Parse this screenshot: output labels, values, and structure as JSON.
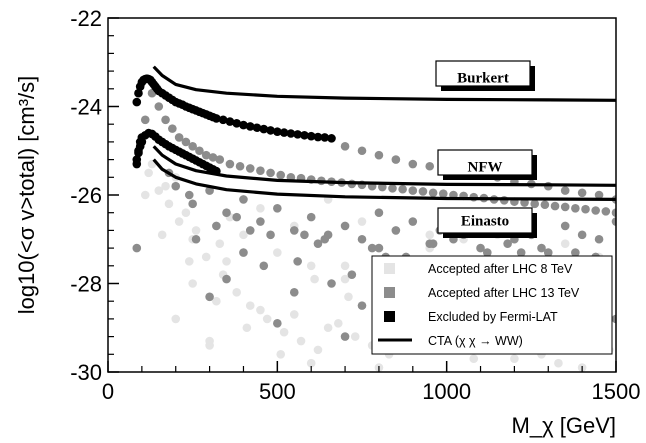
{
  "chart_data": {
    "type": "scatter",
    "title": "",
    "xlabel": "M_χ [GeV]",
    "ylabel": "log10(<σ v>total) [cm³/s]",
    "xlim": [
      0,
      1500
    ],
    "ylim": [
      -30,
      -22
    ],
    "x_ticks": [
      0,
      500,
      1000,
      1500
    ],
    "x_tick_labels": [
      "0",
      "500",
      "1000",
      "1500"
    ],
    "y_ticks": [
      -30,
      -28,
      -26,
      -24,
      -22
    ],
    "y_tick_labels": [
      "-30",
      "-28",
      "-26",
      "-24",
      "-22"
    ],
    "legend_position": "bottom-right",
    "legend": [
      {
        "label": "Accepted after LHC 8 TeV",
        "marker": "square",
        "color": "#e4e4e4"
      },
      {
        "label": "Accepted after LHC 13 TeV",
        "marker": "square",
        "color": "#8c8c8c"
      },
      {
        "label": "Excluded by Fermi-LAT",
        "marker": "square",
        "color": "#000000"
      },
      {
        "label": "CTA (χ χ → WW)",
        "marker": "line",
        "color": "#000000"
      }
    ],
    "cta_curves": [
      {
        "label": "Burkert",
        "x": [
          135,
          160,
          200,
          260,
          350,
          500,
          700,
          1000,
          1300,
          1500
        ],
        "y": [
          -23.1,
          -23.3,
          -23.5,
          -23.62,
          -23.7,
          -23.77,
          -23.81,
          -23.84,
          -23.85,
          -23.86
        ]
      },
      {
        "label": "NFW",
        "x": [
          135,
          160,
          200,
          260,
          350,
          500,
          700,
          1000,
          1300,
          1500
        ],
        "y": [
          -24.9,
          -25.1,
          -25.3,
          -25.45,
          -25.57,
          -25.67,
          -25.72,
          -25.76,
          -25.77,
          -25.78
        ]
      },
      {
        "label": "Einasto",
        "x": [
          135,
          160,
          200,
          260,
          350,
          500,
          700,
          1000,
          1300,
          1500
        ],
        "y": [
          -25.2,
          -25.42,
          -25.6,
          -25.75,
          -25.88,
          -25.98,
          -26.04,
          -26.08,
          -26.09,
          -26.1
        ]
      }
    ],
    "series": [
      {
        "name": "Accepted after LHC 8 TeV",
        "color": "#e4e4e4",
        "x": [
          100,
          120,
          150,
          180,
          200,
          230,
          260,
          300,
          330,
          360,
          400,
          450,
          500,
          550,
          600,
          650,
          700,
          750,
          800,
          850,
          900,
          950,
          1000,
          1050,
          1100,
          1150,
          1200,
          1250,
          1300,
          1350,
          1400,
          1450,
          130,
          170,
          210,
          250,
          290,
          340,
          380,
          420,
          470,
          520,
          570,
          620,
          680,
          730,
          780,
          830,
          880,
          930,
          980,
          1030,
          1080,
          1130,
          1180,
          1230,
          1280,
          1330,
          1380,
          1430,
          1480,
          110,
          160,
          240,
          320,
          410,
          510,
          610,
          710,
          810,
          910,
          1010,
          1110,
          1210,
          1310,
          1410,
          200,
          300,
          400,
          600,
          800,
          1000,
          1200,
          1400,
          250,
          450,
          650,
          850,
          1050,
          1250,
          1450,
          300,
          700,
          900,
          1300,
          350,
          550,
          950,
          1150,
          1350
        ],
        "y": [
          -24.8,
          -25.5,
          -25.9,
          -26.2,
          -25.6,
          -26.4,
          -26.8,
          -25.9,
          -27.1,
          -26.5,
          -26.9,
          -26.3,
          -27.3,
          -26.7,
          -27.6,
          -26.1,
          -27.9,
          -26.6,
          -27.2,
          -26.8,
          -28.1,
          -26.9,
          -27.5,
          -27.0,
          -28.3,
          -26.9,
          -27.6,
          -27.8,
          -28.6,
          -27.1,
          -28.0,
          -27.4,
          -25.3,
          -25.8,
          -26.6,
          -27.0,
          -27.4,
          -27.8,
          -28.2,
          -28.5,
          -28.8,
          -29.1,
          -29.3,
          -29.5,
          -28.9,
          -29.2,
          -29.4,
          -29.6,
          -28.7,
          -29.0,
          -29.3,
          -29.5,
          -29.7,
          -28.8,
          -29.1,
          -29.4,
          -29.6,
          -29.8,
          -29.0,
          -29.3,
          -29.5,
          -26.0,
          -26.9,
          -27.5,
          -28.4,
          -29.0,
          -29.6,
          -27.9,
          -28.3,
          -28.6,
          -29.1,
          -28.9,
          -27.7,
          -28.2,
          -29.2,
          -28.7,
          -28.8,
          -29.4,
          -27.3,
          -29.8,
          -29.9,
          -28.4,
          -29.7,
          -29.9,
          -28.0,
          -28.6,
          -29.0,
          -27.8,
          -29.5,
          -28.9,
          -28.1,
          -29.3,
          -27.6,
          -28.0,
          -27.9,
          -27.5,
          -28.7,
          -27.2,
          -28.5,
          -28.3
        ]
      },
      {
        "name": "Accepted after LHC 13 TeV",
        "color": "#8c8c8c",
        "x": [
          85,
          95,
          110,
          130,
          150,
          170,
          190,
          210,
          230,
          250,
          270,
          290,
          310,
          330,
          360,
          390,
          420,
          450,
          480,
          510,
          540,
          570,
          600,
          630,
          660,
          690,
          720,
          750,
          780,
          810,
          840,
          870,
          900,
          930,
          960,
          990,
          1020,
          1050,
          1080,
          1110,
          1140,
          1170,
          1200,
          1230,
          1260,
          1290,
          1320,
          1350,
          1380,
          1410,
          1440,
          1470,
          1500,
          700,
          750,
          800,
          850,
          900,
          950,
          1000,
          1050,
          1100,
          1150,
          1200,
          1250,
          1300,
          1350,
          1400,
          1450,
          1500,
          200,
          250,
          300,
          350,
          400,
          450,
          500,
          550,
          600,
          650,
          700,
          750,
          800,
          850,
          900,
          950,
          1000,
          1050,
          1100,
          1150,
          1200,
          1250,
          1300,
          1350,
          1400,
          1450,
          1500,
          180,
          240,
          320,
          400,
          480,
          560,
          640,
          720,
          800,
          880,
          960,
          1040,
          1120,
          1200,
          1280,
          1360,
          1440,
          300,
          500,
          700,
          900,
          1100,
          1300,
          1500,
          350,
          550,
          750,
          950,
          1150,
          1350,
          420,
          620,
          820,
          1020,
          1220,
          1420,
          260,
          460,
          660,
          860,
          1060,
          1260,
          1460,
          380,
          580,
          780,
          980,
          1180,
          1380
        ],
        "y": [
          -27.2,
          -24.9,
          -24.3,
          -23.7,
          -24.0,
          -24.3,
          -24.5,
          -24.7,
          -24.8,
          -24.9,
          -25.0,
          -25.1,
          -25.15,
          -25.2,
          -25.3,
          -25.35,
          -25.4,
          -25.45,
          -25.5,
          -25.55,
          -25.6,
          -25.62,
          -25.65,
          -25.68,
          -25.7,
          -25.72,
          -25.75,
          -25.77,
          -25.8,
          -25.82,
          -25.85,
          -25.87,
          -25.9,
          -25.92,
          -25.95,
          -25.97,
          -26.0,
          -26.02,
          -26.05,
          -26.07,
          -26.1,
          -26.12,
          -26.15,
          -26.17,
          -26.2,
          -26.22,
          -26.25,
          -26.27,
          -26.3,
          -26.32,
          -26.35,
          -26.37,
          -26.4,
          -24.9,
          -25.0,
          -25.1,
          -25.2,
          -25.3,
          -25.35,
          -25.4,
          -25.5,
          -25.55,
          -25.6,
          -25.7,
          -25.75,
          -25.8,
          -25.9,
          -25.95,
          -26.0,
          -26.1,
          -25.8,
          -26.2,
          -25.9,
          -26.4,
          -26.1,
          -26.6,
          -26.3,
          -26.8,
          -26.5,
          -26.9,
          -26.7,
          -27.0,
          -26.4,
          -26.8,
          -26.6,
          -27.1,
          -26.7,
          -26.9,
          -27.2,
          -26.8,
          -27.0,
          -26.9,
          -27.3,
          -26.7,
          -26.9,
          -27.0,
          -26.6,
          -25.5,
          -26.0,
          -26.7,
          -27.3,
          -26.9,
          -27.5,
          -27.0,
          -27.8,
          -27.2,
          -27.4,
          -27.1,
          -27.6,
          -27.3,
          -27.5,
          -27.2,
          -27.6,
          -27.4,
          -28.3,
          -28.9,
          -29.2,
          -28.7,
          -29.0,
          -29.4,
          -28.8,
          -27.9,
          -28.2,
          -28.5,
          -28.1,
          -28.4,
          -28.6,
          -26.8,
          -27.1,
          -27.4,
          -27.0,
          -27.3,
          -27.5,
          -27.0,
          -27.6,
          -28.0,
          -27.7,
          -28.2,
          -27.9,
          -28.4,
          -26.5,
          -26.9,
          -27.2,
          -26.8,
          -27.1,
          -27.3
        ]
      },
      {
        "name": "Excluded by Fermi-LAT",
        "color": "#000000",
        "x": [
          85,
          90,
          95,
          100,
          105,
          110,
          115,
          120,
          125,
          130,
          135,
          140,
          145,
          150,
          160,
          170,
          180,
          190,
          200,
          210,
          220,
          230,
          240,
          250,
          260,
          270,
          280,
          290,
          300,
          310,
          320,
          340,
          360,
          380,
          400,
          420,
          440,
          460,
          480,
          500,
          520,
          540,
          560,
          580,
          600,
          620,
          640,
          660,
          85,
          90,
          95,
          100,
          110,
          120,
          130,
          140,
          150,
          160,
          170,
          180,
          190,
          200,
          210,
          220,
          230,
          240,
          250,
          260,
          270,
          280,
          290,
          300,
          310,
          320,
          85,
          90,
          95,
          100
        ],
        "y": [
          -23.9,
          -23.7,
          -23.55,
          -23.45,
          -23.4,
          -23.38,
          -23.37,
          -23.38,
          -23.4,
          -23.45,
          -23.5,
          -23.55,
          -23.6,
          -23.65,
          -23.7,
          -23.75,
          -23.8,
          -23.85,
          -23.9,
          -23.93,
          -23.96,
          -24.0,
          -24.03,
          -24.06,
          -24.09,
          -24.12,
          -24.15,
          -24.18,
          -24.21,
          -24.24,
          -24.27,
          -24.3,
          -24.34,
          -24.38,
          -24.42,
          -24.45,
          -24.48,
          -24.51,
          -24.54,
          -24.57,
          -24.59,
          -24.61,
          -24.63,
          -24.65,
          -24.67,
          -24.69,
          -24.7,
          -24.72,
          -25.3,
          -25.0,
          -24.8,
          -24.7,
          -24.65,
          -24.6,
          -24.62,
          -24.68,
          -24.75,
          -24.8,
          -24.85,
          -24.9,
          -24.94,
          -24.98,
          -25.02,
          -25.06,
          -25.1,
          -25.14,
          -25.18,
          -25.22,
          -25.26,
          -25.3,
          -25.34,
          -25.38,
          -25.42,
          -25.46,
          -25.2,
          -25.05,
          -24.9,
          -24.8
        ]
      }
    ],
    "curve_labels": [
      "Burkert",
      "NFW",
      "Einasto"
    ]
  }
}
